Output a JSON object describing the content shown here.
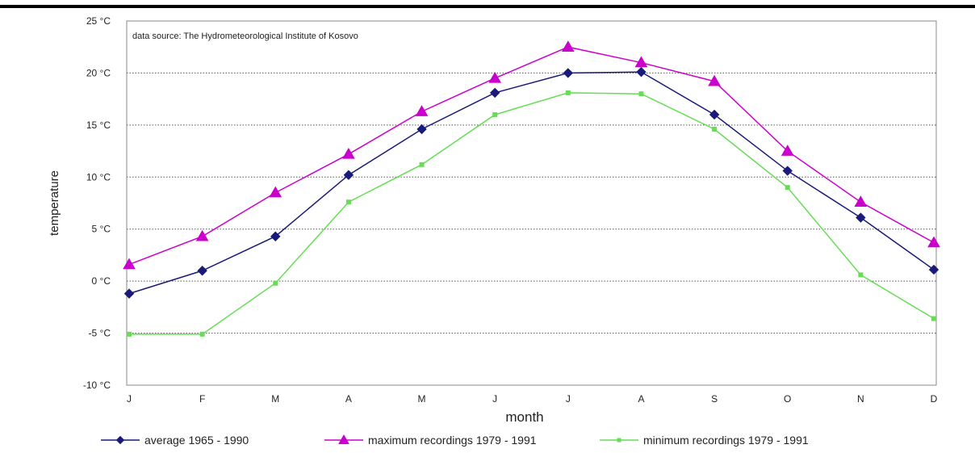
{
  "chart_data": {
    "type": "line",
    "source_note": "data source: The Hydrometeorological Institute of Kosovo",
    "xlabel": "month",
    "ylabel": "temperature",
    "categories": [
      "J",
      "F",
      "M",
      "A",
      "M",
      "J",
      "J",
      "A",
      "S",
      "O",
      "N",
      "D"
    ],
    "ylim": [
      -10,
      25
    ],
    "yticks": [
      -10,
      -5,
      0,
      5,
      10,
      15,
      20,
      25
    ],
    "ytick_labels": [
      "-10 °C",
      "-5 °C",
      "0 °C",
      "5 °C",
      "10 °C",
      "15 °C",
      "20 °C",
      "25 °C"
    ],
    "grid": "horizontal dotted",
    "legend_position": "bottom",
    "series": [
      {
        "name": "average 1965 - 1990",
        "color": "#1a1a7a",
        "marker": "diamond",
        "values": [
          -1.2,
          1.0,
          4.3,
          10.2,
          14.6,
          18.1,
          20.0,
          20.1,
          16.0,
          10.6,
          6.1,
          1.1
        ]
      },
      {
        "name": "maximum recordings 1979 - 1991",
        "color": "#cc00cc",
        "marker": "triangle",
        "values": [
          1.6,
          4.3,
          8.5,
          12.2,
          16.3,
          19.5,
          22.5,
          21.0,
          19.2,
          12.5,
          7.6,
          3.7
        ]
      },
      {
        "name": "minimum recordings 1979 - 1991",
        "color": "#66dd55",
        "marker": "square",
        "values": [
          -5.1,
          -5.1,
          -0.2,
          7.6,
          11.2,
          16.0,
          18.1,
          18.0,
          14.6,
          9.0,
          0.6,
          -3.6
        ]
      }
    ]
  }
}
